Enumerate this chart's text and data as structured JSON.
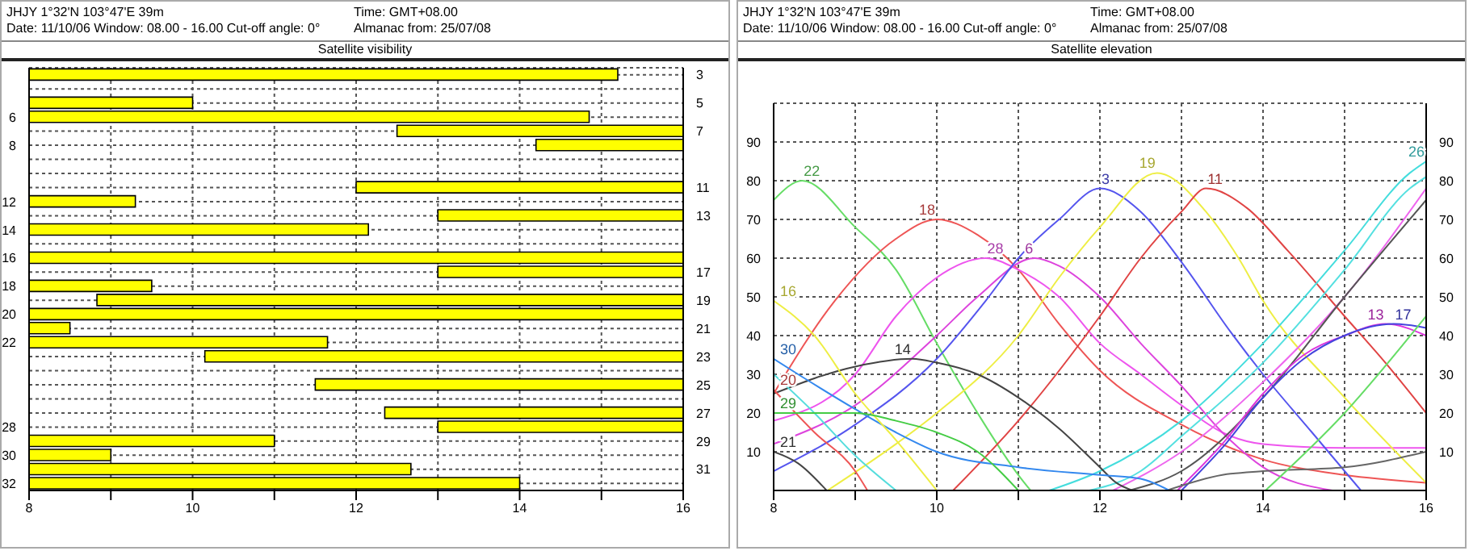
{
  "chart_data": [
    {
      "type": "bar",
      "orientation": "horizontal",
      "title": "Satellite visibility",
      "annotations": [
        "JHJY   1°32'N  103°47'E    39m",
        "Time: GMT+08.00",
        "Date: 11/10/06  Window: 08.00 - 16.00  Cut-off angle: 0°",
        "Almanac from: 25/07/08"
      ],
      "categories": [
        "3",
        null,
        "5",
        "6",
        "7",
        "8",
        null,
        null,
        "11",
        "12",
        "13",
        "14",
        null,
        "16",
        "17",
        "18",
        "19",
        "20",
        "21",
        "22",
        "23",
        null,
        "25",
        null,
        "27",
        "28",
        "29",
        "30",
        "31",
        "32"
      ],
      "base": [
        8,
        null,
        8,
        8,
        12.5,
        14.2,
        null,
        null,
        12,
        8,
        13,
        8,
        null,
        8,
        13,
        8,
        8.83,
        8,
        8,
        8,
        10.15,
        null,
        11.5,
        null,
        12.35,
        13,
        8,
        8,
        8,
        8
      ],
      "values": [
        7.2,
        null,
        2,
        6.85,
        3.5,
        1.8,
        null,
        null,
        4,
        1.3,
        3,
        4.15,
        null,
        8,
        3,
        1.5,
        7.17,
        8,
        0.5,
        3.65,
        5.85,
        null,
        4.5,
        null,
        3.65,
        3,
        3,
        1,
        4.67,
        6
      ],
      "color": "#ffff00",
      "xlim": [
        8,
        16
      ],
      "xticks": [
        8,
        {
          "value": 9,
          "label": null
        },
        10,
        {
          "value": 11,
          "label": null
        },
        12,
        {
          "value": 13,
          "label": null
        },
        14,
        {
          "value": 15,
          "label": null
        },
        16
      ],
      "grid": true
    },
    {
      "type": "line",
      "title": "Satellite elevation",
      "annotations": [
        "JHJY   1°32'N  103°47'E    39m",
        "Time: GMT+08.00",
        "Date: 11/10/06  Window: 08.00 - 16.00  Cut-off angle: 0°",
        "Almanac from: 25/07/08"
      ],
      "xlim": [
        8,
        16
      ],
      "xticks": [
        8,
        {
          "value": 9,
          "label": null
        },
        10,
        {
          "value": 11,
          "label": null
        },
        12,
        {
          "value": 13,
          "label": null
        },
        14,
        {
          "value": 15,
          "label": null
        },
        16
      ],
      "ylim": [
        0,
        100
      ],
      "yticks": [
        10,
        20,
        30,
        40,
        50,
        60,
        70,
        80,
        90
      ],
      "y2lim": [
        0,
        100
      ],
      "y2ticks": [
        10,
        20,
        30,
        40,
        50,
        60,
        70,
        80,
        90
      ],
      "grid": true,
      "marker": "none",
      "series": [
        {
          "name": "22",
          "color": "#66dd66",
          "x": [
            8,
            8.35,
            9,
            9.5,
            10,
            10.5,
            11,
            11.15
          ],
          "values": [
            75,
            80,
            68,
            57,
            38,
            20,
            4,
            0
          ]
        },
        {
          "name": "18",
          "color": "#ee5555",
          "x": [
            8,
            8.75,
            9.5,
            10,
            10.5,
            11,
            11.5,
            12,
            13,
            14,
            15,
            16
          ],
          "values": [
            25,
            49,
            65,
            70,
            66,
            57,
            43,
            31,
            17,
            8,
            4,
            2
          ]
        },
        {
          "name": "28",
          "color": "#ee55ee",
          "x": [
            8,
            9,
            9.5,
            10,
            10.6,
            11,
            11.5,
            12,
            12.5,
            13,
            13.5,
            14,
            15,
            16
          ],
          "values": [
            18,
            30,
            45,
            55,
            60,
            57,
            50,
            38,
            30,
            22,
            15,
            12,
            11,
            11
          ]
        },
        {
          "name": "6",
          "color": "#dd44dd",
          "x": [
            8,
            9,
            10,
            10.5,
            11.2,
            11.5,
            12,
            12.5,
            13,
            13.5,
            14,
            14.85
          ],
          "values": [
            12,
            22,
            40,
            50,
            60,
            58,
            50,
            38,
            27,
            15,
            6,
            0
          ]
        },
        {
          "name": "3",
          "color": "#5555ee",
          "x": [
            8,
            9,
            10,
            10.6,
            11,
            11.5,
            12,
            12.5,
            13,
            13.6,
            14,
            14.6,
            15.2
          ],
          "values": [
            5,
            17,
            34,
            49,
            60,
            70,
            78,
            72,
            59,
            41,
            30,
            15,
            0
          ]
        },
        {
          "name": "19",
          "color": "#eeee44",
          "x": [
            8.66,
            9.5,
            10,
            11,
            11.5,
            12,
            12.7,
            13.3,
            13.7,
            14,
            15,
            16
          ],
          "values": [
            0,
            12,
            20,
            40,
            55,
            68,
            82,
            72,
            60,
            49,
            24,
            2
          ]
        },
        {
          "name": "11",
          "color": "#e04444",
          "x": [
            10.2,
            11,
            12,
            12.5,
            13,
            13.3,
            13.8,
            14.3,
            15,
            15.5,
            16
          ],
          "values": [
            0,
            18,
            45,
            60,
            72,
            78,
            73,
            62,
            45,
            33,
            20
          ]
        },
        {
          "name": "26",
          "color": "#44dddd",
          "x": [
            11.38,
            12,
            13,
            14,
            15,
            15.8,
            16
          ],
          "values": [
            0,
            5,
            18,
            38,
            62,
            82,
            85
          ]
        },
        {
          "color": "#55e0e0",
          "x": [
            11.87,
            12.5,
            13,
            14,
            15,
            15.8,
            16
          ],
          "values": [
            0,
            5,
            14,
            33,
            57,
            78,
            81
          ]
        },
        {
          "color": "#ee66ee",
          "x": [
            12.16,
            13,
            14,
            15,
            16
          ],
          "values": [
            0,
            10,
            28,
            50,
            78
          ]
        },
        {
          "color": "#555555",
          "x": [
            12.36,
            13,
            14,
            15,
            16
          ],
          "values": [
            0,
            5,
            24,
            50,
            75
          ]
        },
        {
          "name": "13",
          "color": "#dd33dd",
          "x": [
            12.95,
            13.5,
            14,
            14.5,
            15,
            15.5,
            16
          ],
          "values": [
            0,
            12,
            25,
            35,
            40,
            43,
            40
          ]
        },
        {
          "name": "17",
          "color": "#4444dd",
          "x": [
            13,
            13.5,
            14,
            14.5,
            15,
            15.6,
            16
          ],
          "values": [
            0,
            11,
            24,
            34,
            40,
            43,
            42
          ]
        },
        {
          "color": "#666666",
          "x": [
            12.82,
            13.5,
            14,
            15,
            16
          ],
          "values": [
            0,
            4,
            5,
            6,
            10
          ]
        },
        {
          "color": "#66dd66",
          "x": [
            14.03,
            15,
            16
          ],
          "values": [
            0,
            20,
            45
          ]
        },
        {
          "name": "14",
          "color": "#444444",
          "x": [
            8,
            9,
            9.7,
            10,
            10.5,
            11,
            11.5,
            12,
            12.2,
            12.4
          ],
          "values": [
            25,
            32,
            34,
            33,
            30,
            24,
            16,
            6,
            2,
            0
          ]
        },
        {
          "name": "30",
          "color": "#3388ee",
          "x": [
            8,
            8.3,
            9,
            9.5,
            10,
            11,
            12,
            12.5,
            12.85
          ],
          "values": [
            34,
            30,
            21,
            15,
            10,
            6,
            4,
            3,
            0
          ]
        },
        {
          "color": "#55dddd",
          "x": [
            8,
            8.5,
            9,
            9.5
          ],
          "values": [
            30,
            20,
            9,
            0
          ]
        },
        {
          "name": "20",
          "color": "#ee5555",
          "x": [
            8,
            8.5,
            9,
            9.15
          ],
          "values": [
            26,
            15,
            5,
            0
          ]
        },
        {
          "name": "16",
          "color": "#eeee44",
          "x": [
            8,
            8.5,
            9,
            9.5,
            10
          ],
          "values": [
            49,
            40,
            25,
            13,
            0
          ]
        },
        {
          "name": "29",
          "color": "#44cc44",
          "x": [
            8,
            9,
            9.5,
            10,
            10.5,
            11
          ],
          "values": [
            20,
            20,
            18,
            15,
            10,
            0
          ]
        },
        {
          "name": "21",
          "color": "#444444",
          "x": [
            8,
            8.3,
            8.65
          ],
          "values": [
            10,
            7,
            0
          ]
        }
      ]
    }
  ]
}
